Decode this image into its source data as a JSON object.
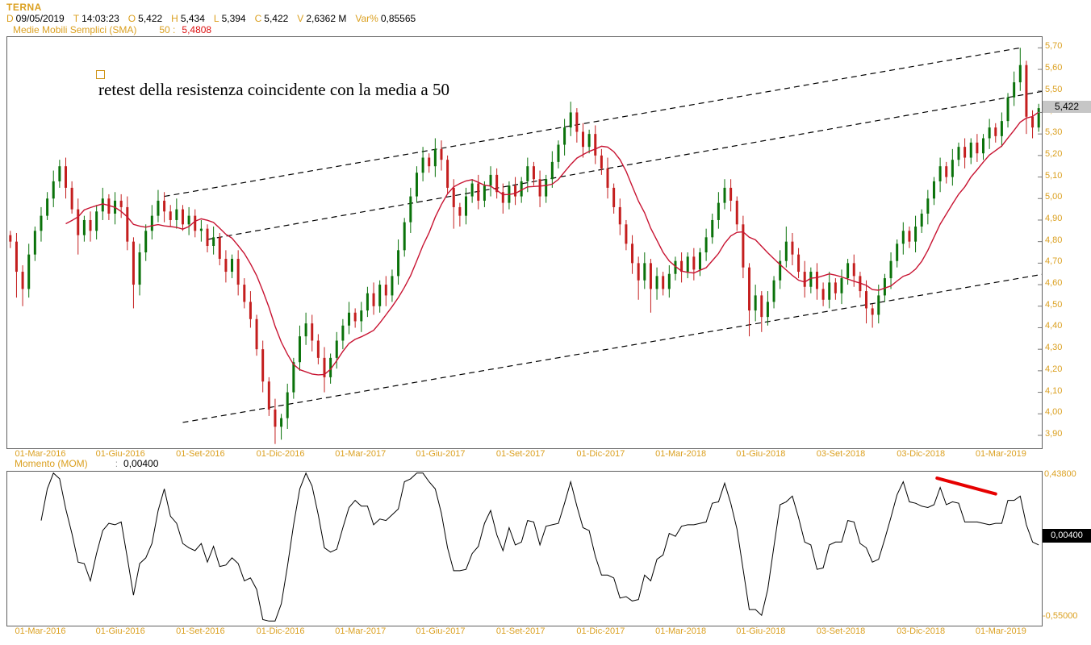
{
  "header": {
    "symbol": "TERNA",
    "quote_fields": [
      {
        "k": "D",
        "v": "09/05/2019"
      },
      {
        "k": "T",
        "v": "14:03:23"
      },
      {
        "k": "O",
        "v": "5,422"
      },
      {
        "k": "H",
        "v": "5,434"
      },
      {
        "k": "L",
        "v": "5,394"
      },
      {
        "k": "C",
        "v": "5,422"
      },
      {
        "k": "V",
        "v": "2,6362 M"
      },
      {
        "k": "Var%",
        "v": "0,85565"
      }
    ],
    "sma_label": "Medie Mobili Semplici (SMA)",
    "sma_period_label": "50 :",
    "sma_value": "5,4808"
  },
  "annotation": {
    "text": "retest della resistenza coincidente con la media a 50"
  },
  "momentum_header": {
    "label": "Momento (MOM)",
    "sep": ":",
    "value": "0,00400"
  },
  "colors": {
    "label_orange": "#dba020",
    "value_red": "#dd1111",
    "candle_up": "#0a720a",
    "candle_down": "#c41e1e",
    "sma_line": "#c81432",
    "trendline_dashed": "#000000",
    "momentum_line": "#000000",
    "momentum_trend_red": "#e60000",
    "last_price_box_bg": "#c6c6c6",
    "momentum_box_bg": "#000000"
  },
  "chart_data": {
    "type": "candlestick",
    "title": "TERNA price with SMA(50) channel and Momentum (MOM) panel",
    "legend_position": "none",
    "grid": false,
    "x_ticks": [
      {
        "i": 5,
        "label": "01-Mar-2016"
      },
      {
        "i": 18,
        "label": "01-Giu-2016"
      },
      {
        "i": 31,
        "label": "01-Set-2016"
      },
      {
        "i": 44,
        "label": "01-Dic-2016"
      },
      {
        "i": 57,
        "label": "01-Mar-2017"
      },
      {
        "i": 70,
        "label": "01-Giu-2017"
      },
      {
        "i": 83,
        "label": "01-Set-2017"
      },
      {
        "i": 96,
        "label": "01-Dic-2017"
      },
      {
        "i": 109,
        "label": "01-Mar-2018"
      },
      {
        "i": 122,
        "label": "01-Giu-2018"
      },
      {
        "i": 135,
        "label": "03-Set-2018"
      },
      {
        "i": 148,
        "label": "03-Dic-2018"
      },
      {
        "i": 161,
        "label": "01-Mar-2019"
      }
    ],
    "price_panel": {
      "ylim": [
        3.84,
        5.75
      ],
      "ticks": [
        [
          5.7,
          "5,70"
        ],
        [
          5.6,
          "5,60"
        ],
        [
          5.5,
          "5,50"
        ],
        [
          5.4,
          "5,40"
        ],
        [
          5.3,
          "5,30"
        ],
        [
          5.2,
          "5,20"
        ],
        [
          5.1,
          "5,10"
        ],
        [
          5.0,
          "5,00"
        ],
        [
          4.9,
          "4,90"
        ],
        [
          4.8,
          "4,80"
        ],
        [
          4.7,
          "4,70"
        ],
        [
          4.6,
          "4,60"
        ],
        [
          4.5,
          "4,50"
        ],
        [
          4.4,
          "4,40"
        ],
        [
          4.3,
          "4,30"
        ],
        [
          4.2,
          "4,20"
        ],
        [
          4.1,
          "4,10"
        ],
        [
          4.0,
          "4,00"
        ],
        [
          3.9,
          "3,90"
        ]
      ],
      "last_price": 5.422,
      "last_price_label": "5,422",
      "sma_window": 10,
      "candles": [
        [
          4.83,
          4.85,
          4.77,
          4.8
        ],
        [
          4.8,
          4.84,
          4.54,
          4.66
        ],
        [
          4.66,
          4.69,
          4.5,
          4.58
        ],
        [
          4.58,
          4.79,
          4.54,
          4.74
        ],
        [
          4.74,
          4.87,
          4.71,
          4.85
        ],
        [
          4.85,
          4.96,
          4.8,
          4.92
        ],
        [
          4.92,
          5.03,
          4.9,
          5.0
        ],
        [
          5.0,
          5.13,
          4.96,
          5.08
        ],
        [
          5.08,
          5.18,
          5.05,
          5.15
        ],
        [
          5.15,
          5.19,
          5.0,
          5.05
        ],
        [
          5.05,
          5.08,
          4.93,
          4.95
        ],
        [
          4.95,
          5.0,
          4.74,
          4.83
        ],
        [
          4.83,
          4.92,
          4.8,
          4.9
        ],
        [
          4.9,
          4.94,
          4.8,
          4.85
        ],
        [
          4.85,
          4.97,
          4.81,
          4.94
        ],
        [
          4.94,
          5.05,
          4.9,
          5.0
        ],
        [
          5.0,
          5.02,
          4.9,
          4.93
        ],
        [
          4.93,
          5.03,
          4.88,
          4.99
        ],
        [
          4.99,
          5.02,
          4.91,
          4.96
        ],
        [
          4.96,
          5.01,
          4.76,
          4.8
        ],
        [
          4.8,
          4.82,
          4.49,
          4.6
        ],
        [
          4.6,
          4.79,
          4.55,
          4.75
        ],
        [
          4.75,
          4.88,
          4.71,
          4.85
        ],
        [
          4.85,
          4.97,
          4.81,
          4.92
        ],
        [
          4.92,
          5.04,
          4.89,
          4.99
        ],
        [
          4.99,
          5.03,
          4.89,
          4.94
        ],
        [
          4.94,
          4.97,
          4.87,
          4.9
        ],
        [
          4.9,
          5.0,
          4.86,
          4.95
        ],
        [
          4.95,
          4.97,
          4.85,
          4.88
        ],
        [
          4.88,
          4.96,
          4.83,
          4.92
        ],
        [
          4.92,
          4.95,
          4.82,
          4.85
        ],
        [
          4.85,
          4.9,
          4.8,
          4.86
        ],
        [
          4.86,
          4.88,
          4.75,
          4.78
        ],
        [
          4.78,
          4.87,
          4.74,
          4.82
        ],
        [
          4.82,
          4.84,
          4.69,
          4.72
        ],
        [
          4.72,
          4.76,
          4.61,
          4.66
        ],
        [
          4.66,
          4.74,
          4.63,
          4.72
        ],
        [
          4.72,
          4.76,
          4.55,
          4.6
        ],
        [
          4.6,
          4.63,
          4.49,
          4.52
        ],
        [
          4.52,
          4.57,
          4.4,
          4.44
        ],
        [
          4.44,
          4.46,
          4.27,
          4.3
        ],
        [
          4.3,
          4.34,
          4.1,
          4.15
        ],
        [
          4.15,
          4.17,
          3.99,
          4.02
        ],
        [
          4.02,
          4.07,
          3.86,
          3.94
        ],
        [
          3.94,
          4.0,
          3.88,
          3.98
        ],
        [
          3.98,
          4.14,
          3.93,
          4.1
        ],
        [
          4.1,
          4.26,
          4.07,
          4.24
        ],
        [
          4.24,
          4.41,
          4.2,
          4.36
        ],
        [
          4.36,
          4.47,
          4.32,
          4.42
        ],
        [
          4.42,
          4.46,
          4.29,
          4.34
        ],
        [
          4.34,
          4.37,
          4.23,
          4.26
        ],
        [
          4.26,
          4.31,
          4.1,
          4.17
        ],
        [
          4.17,
          4.28,
          4.14,
          4.26
        ],
        [
          4.26,
          4.38,
          4.21,
          4.34
        ],
        [
          4.34,
          4.44,
          4.3,
          4.41
        ],
        [
          4.41,
          4.52,
          4.37,
          4.47
        ],
        [
          4.47,
          4.49,
          4.4,
          4.43
        ],
        [
          4.43,
          4.52,
          4.38,
          4.48
        ],
        [
          4.48,
          4.59,
          4.45,
          4.56
        ],
        [
          4.56,
          4.61,
          4.46,
          4.5
        ],
        [
          4.5,
          4.62,
          4.47,
          4.6
        ],
        [
          4.6,
          4.64,
          4.5,
          4.55
        ],
        [
          4.55,
          4.67,
          4.52,
          4.64
        ],
        [
          4.64,
          4.81,
          4.6,
          4.76
        ],
        [
          4.76,
          4.91,
          4.73,
          4.89
        ],
        [
          4.89,
          5.05,
          4.84,
          5.01
        ],
        [
          5.01,
          5.15,
          4.98,
          5.12
        ],
        [
          5.12,
          5.24,
          5.08,
          5.19
        ],
        [
          5.19,
          5.21,
          5.12,
          5.15
        ],
        [
          5.15,
          5.28,
          5.1,
          5.23
        ],
        [
          5.23,
          5.27,
          5.13,
          5.18
        ],
        [
          5.18,
          5.2,
          5.02,
          5.05
        ],
        [
          5.05,
          5.09,
          4.86,
          4.96
        ],
        [
          4.96,
          4.98,
          4.87,
          4.92
        ],
        [
          4.92,
          5.05,
          4.88,
          5.01
        ],
        [
          5.01,
          5.09,
          4.98,
          5.07
        ],
        [
          5.07,
          5.11,
          4.95,
          4.99
        ],
        [
          4.99,
          5.08,
          4.96,
          5.06
        ],
        [
          5.06,
          5.15,
          5.01,
          5.11
        ],
        [
          5.11,
          5.14,
          5.0,
          5.03
        ],
        [
          5.03,
          5.07,
          4.93,
          4.98
        ],
        [
          4.98,
          5.08,
          4.95,
          5.06
        ],
        [
          5.06,
          5.1,
          4.97,
          5.01
        ],
        [
          5.01,
          5.1,
          4.98,
          5.08
        ],
        [
          5.08,
          5.19,
          5.03,
          5.15
        ],
        [
          5.15,
          5.17,
          5.06,
          5.09
        ],
        [
          5.09,
          5.13,
          4.96,
          5.01
        ],
        [
          5.01,
          5.11,
          4.98,
          5.09
        ],
        [
          5.09,
          5.22,
          5.05,
          5.17
        ],
        [
          5.17,
          5.27,
          5.14,
          5.25
        ],
        [
          5.25,
          5.37,
          5.2,
          5.33
        ],
        [
          5.33,
          5.45,
          5.29,
          5.4
        ],
        [
          5.4,
          5.42,
          5.26,
          5.31
        ],
        [
          5.31,
          5.35,
          5.19,
          5.24
        ],
        [
          5.24,
          5.32,
          5.21,
          5.3
        ],
        [
          5.3,
          5.34,
          5.16,
          5.2
        ],
        [
          5.2,
          5.23,
          5.11,
          5.14
        ],
        [
          5.14,
          5.19,
          5.0,
          5.05
        ],
        [
          5.05,
          5.07,
          4.93,
          4.96
        ],
        [
          4.96,
          5.0,
          4.83,
          4.88
        ],
        [
          4.88,
          4.9,
          4.76,
          4.79
        ],
        [
          4.79,
          4.83,
          4.65,
          4.7
        ],
        [
          4.7,
          4.73,
          4.53,
          4.62
        ],
        [
          4.62,
          4.75,
          4.58,
          4.7
        ],
        [
          4.7,
          4.72,
          4.47,
          4.58
        ],
        [
          4.58,
          4.68,
          4.53,
          4.64
        ],
        [
          4.64,
          4.66,
          4.55,
          4.58
        ],
        [
          4.58,
          4.69,
          4.54,
          4.65
        ],
        [
          4.65,
          4.73,
          4.62,
          4.71
        ],
        [
          4.71,
          4.75,
          4.61,
          4.66
        ],
        [
          4.66,
          4.75,
          4.63,
          4.73
        ],
        [
          4.73,
          4.77,
          4.62,
          4.67
        ],
        [
          4.67,
          4.77,
          4.64,
          4.75
        ],
        [
          4.75,
          4.86,
          4.71,
          4.82
        ],
        [
          4.82,
          4.93,
          4.79,
          4.9
        ],
        [
          4.9,
          5.03,
          4.86,
          4.98
        ],
        [
          4.98,
          5.09,
          4.95,
          5.05
        ],
        [
          5.05,
          5.09,
          4.94,
          4.99
        ],
        [
          4.99,
          5.01,
          4.85,
          4.88
        ],
        [
          4.88,
          4.92,
          4.63,
          4.68
        ],
        [
          4.68,
          4.7,
          4.36,
          4.48
        ],
        [
          4.48,
          4.6,
          4.43,
          4.55
        ],
        [
          4.55,
          4.57,
          4.38,
          4.45
        ],
        [
          4.45,
          4.57,
          4.41,
          4.52
        ],
        [
          4.52,
          4.64,
          4.49,
          4.62
        ],
        [
          4.62,
          4.76,
          4.58,
          4.71
        ],
        [
          4.71,
          4.87,
          4.68,
          4.8
        ],
        [
          4.8,
          4.84,
          4.69,
          4.74
        ],
        [
          4.74,
          4.77,
          4.63,
          4.66
        ],
        [
          4.66,
          4.71,
          4.54,
          4.59
        ],
        [
          4.59,
          4.68,
          4.56,
          4.66
        ],
        [
          4.66,
          4.7,
          4.53,
          4.58
        ],
        [
          4.58,
          4.61,
          4.5,
          4.53
        ],
        [
          4.53,
          4.66,
          4.49,
          4.61
        ],
        [
          4.61,
          4.63,
          4.53,
          4.56
        ],
        [
          4.56,
          4.67,
          4.51,
          4.63
        ],
        [
          4.63,
          4.72,
          4.6,
          4.7
        ],
        [
          4.7,
          4.74,
          4.59,
          4.64
        ],
        [
          4.64,
          4.66,
          4.54,
          4.57
        ],
        [
          4.57,
          4.62,
          4.42,
          4.49
        ],
        [
          4.49,
          4.51,
          4.4,
          4.46
        ],
        [
          4.46,
          4.6,
          4.42,
          4.55
        ],
        [
          4.55,
          4.65,
          4.52,
          4.63
        ],
        [
          4.63,
          4.75,
          4.58,
          4.71
        ],
        [
          4.71,
          4.81,
          4.68,
          4.79
        ],
        [
          4.79,
          4.89,
          4.74,
          4.85
        ],
        [
          4.85,
          4.87,
          4.77,
          4.8
        ],
        [
          4.8,
          4.92,
          4.75,
          4.87
        ],
        [
          4.87,
          4.95,
          4.84,
          4.93
        ],
        [
          4.93,
          5.04,
          4.88,
          5.0
        ],
        [
          5.0,
          5.1,
          4.97,
          5.08
        ],
        [
          5.08,
          5.19,
          5.03,
          5.15
        ],
        [
          5.15,
          5.17,
          5.07,
          5.1
        ],
        [
          5.1,
          5.23,
          5.06,
          5.18
        ],
        [
          5.18,
          5.26,
          5.15,
          5.24
        ],
        [
          5.24,
          5.28,
          5.14,
          5.19
        ],
        [
          5.19,
          5.28,
          5.16,
          5.26
        ],
        [
          5.26,
          5.3,
          5.17,
          5.21
        ],
        [
          5.21,
          5.3,
          5.18,
          5.28
        ],
        [
          5.28,
          5.37,
          5.23,
          5.33
        ],
        [
          5.33,
          5.35,
          5.26,
          5.29
        ],
        [
          5.29,
          5.4,
          5.24,
          5.36
        ],
        [
          5.36,
          5.49,
          5.33,
          5.47
        ],
        [
          5.47,
          5.59,
          5.43,
          5.54
        ],
        [
          5.54,
          5.7,
          5.5,
          5.62
        ],
        [
          5.62,
          5.64,
          5.3,
          5.38
        ],
        [
          5.38,
          5.41,
          5.28,
          5.33
        ],
        [
          5.33,
          5.44,
          5.31,
          5.42
        ]
      ],
      "trendlines": [
        {
          "i1": 25,
          "p1": 5.01,
          "i2": 164,
          "p2": 5.7
        },
        {
          "i1": 32,
          "p1": 4.81,
          "i2": 168,
          "p2": 5.5
        },
        {
          "i1": 28,
          "p1": 3.96,
          "i2": 168,
          "p2": 4.65
        }
      ]
    },
    "momentum_panel": {
      "ylim": [
        -0.612,
        0.46
      ],
      "mom_lag": 5,
      "top_tick": {
        "v": 0.438,
        "label": "0,43800"
      },
      "bottom_tick": {
        "v": -0.55,
        "label": "-0,55000"
      },
      "value_box": {
        "v": 0.004,
        "label": "0,00400"
      },
      "trendline": {
        "i1": 150.5,
        "m1": 0.415,
        "i2": 160,
        "m2": 0.305
      }
    }
  }
}
